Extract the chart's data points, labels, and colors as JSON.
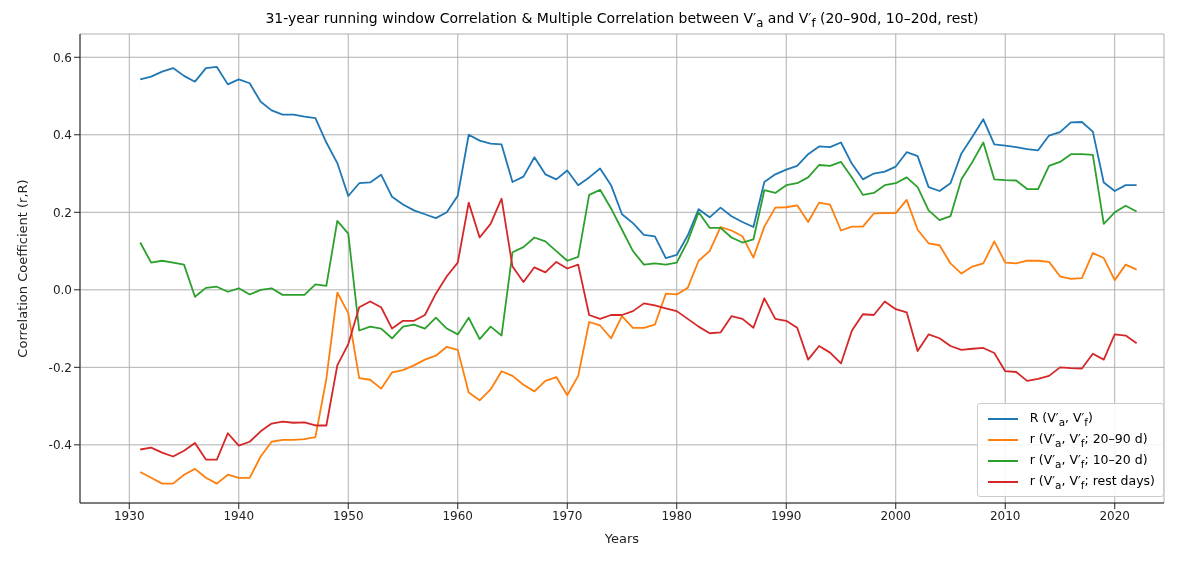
{
  "chart_data": {
    "type": "line",
    "title": "31-year running window Correlation & Multiple Correlation between V′$_{a}$ and V′$_{f}$ (20–90d, 10–20d, rest)",
    "xlabel": "Years",
    "ylabel": "Correlation Coefficient (r,R)",
    "x": [
      1931,
      1932,
      1933,
      1934,
      1935,
      1936,
      1937,
      1938,
      1939,
      1940,
      1941,
      1942,
      1943,
      1944,
      1945,
      1946,
      1947,
      1948,
      1949,
      1950,
      1951,
      1952,
      1953,
      1954,
      1955,
      1956,
      1957,
      1958,
      1959,
      1960,
      1961,
      1962,
      1963,
      1964,
      1965,
      1966,
      1967,
      1968,
      1969,
      1970,
      1971,
      1972,
      1973,
      1974,
      1975,
      1976,
      1977,
      1978,
      1979,
      1980,
      1981,
      1982,
      1983,
      1984,
      1985,
      1986,
      1987,
      1988,
      1989,
      1990,
      1991,
      1992,
      1993,
      1994,
      1995,
      1996,
      1997,
      1998,
      1999,
      2000,
      2001,
      2002,
      2003,
      2004,
      2005,
      2006,
      2007,
      2008,
      2009,
      2010,
      2011,
      2012,
      2013,
      2014,
      2015,
      2016,
      2017,
      2018,
      2019,
      2020,
      2021,
      2022
    ],
    "series": [
      {
        "name": "R (V′$_{a}$, V′$_{f}$)",
        "color": "#1f77b4",
        "values": [
          0.543,
          0.55,
          0.563,
          0.572,
          0.552,
          0.537,
          0.572,
          0.575,
          0.53,
          0.543,
          0.533,
          0.485,
          0.463,
          0.452,
          0.452,
          0.447,
          0.443,
          0.38,
          0.327,
          0.242,
          0.275,
          0.277,
          0.297,
          0.24,
          0.22,
          0.205,
          0.195,
          0.185,
          0.2,
          0.243,
          0.4,
          0.385,
          0.377,
          0.375,
          0.278,
          0.292,
          0.342,
          0.298,
          0.285,
          0.308,
          0.27,
          0.29,
          0.313,
          0.27,
          0.195,
          0.172,
          0.142,
          0.138,
          0.082,
          0.09,
          0.14,
          0.208,
          0.187,
          0.212,
          0.19,
          0.175,
          0.162,
          0.278,
          0.298,
          0.31,
          0.32,
          0.35,
          0.37,
          0.368,
          0.38,
          0.325,
          0.285,
          0.3,
          0.305,
          0.318,
          0.355,
          0.345,
          0.265,
          0.255,
          0.275,
          0.352,
          0.395,
          0.44,
          0.375,
          0.372,
          0.368,
          0.363,
          0.36,
          0.398,
          0.407,
          0.432,
          0.433,
          0.408,
          0.277,
          0.255,
          0.27,
          0.27
        ]
      },
      {
        "name": "r (V′$_{a}$, V′$_{f}$; 20–90 d)",
        "color": "#ff7f0e",
        "values": [
          -0.47,
          -0.485,
          -0.5,
          -0.5,
          -0.477,
          -0.462,
          -0.485,
          -0.5,
          -0.477,
          -0.485,
          -0.485,
          -0.43,
          -0.392,
          -0.387,
          -0.387,
          -0.385,
          -0.38,
          -0.23,
          -0.007,
          -0.06,
          -0.228,
          -0.232,
          -0.255,
          -0.213,
          -0.207,
          -0.195,
          -0.18,
          -0.17,
          -0.147,
          -0.155,
          -0.265,
          -0.285,
          -0.257,
          -0.21,
          -0.222,
          -0.245,
          -0.262,
          -0.235,
          -0.225,
          -0.272,
          -0.222,
          -0.083,
          -0.092,
          -0.125,
          -0.068,
          -0.098,
          -0.098,
          -0.09,
          -0.01,
          -0.012,
          0.005,
          0.075,
          0.1,
          0.162,
          0.153,
          0.138,
          0.083,
          0.163,
          0.212,
          0.213,
          0.218,
          0.175,
          0.225,
          0.22,
          0.153,
          0.163,
          0.163,
          0.197,
          0.198,
          0.198,
          0.232,
          0.155,
          0.12,
          0.115,
          0.068,
          0.042,
          0.06,
          0.068,
          0.125,
          0.07,
          0.068,
          0.075,
          0.075,
          0.072,
          0.035,
          0.028,
          0.03,
          0.095,
          0.082,
          0.025,
          0.065,
          0.052
        ]
      },
      {
        "name": "r (V′$_{a}$, V′$_{f}$; 10–20 d)",
        "color": "#2ca02c",
        "values": [
          0.122,
          0.07,
          0.075,
          0.07,
          0.065,
          -0.018,
          0.005,
          0.008,
          -0.005,
          0.004,
          -0.012,
          0.0,
          0.004,
          -0.013,
          -0.013,
          -0.013,
          0.014,
          0.01,
          0.178,
          0.145,
          -0.105,
          -0.095,
          -0.1,
          -0.125,
          -0.095,
          -0.09,
          -0.1,
          -0.072,
          -0.1,
          -0.115,
          -0.072,
          -0.127,
          -0.095,
          -0.118,
          0.097,
          0.11,
          0.135,
          0.125,
          0.1,
          0.075,
          0.085,
          0.245,
          0.258,
          0.21,
          0.155,
          0.1,
          0.065,
          0.068,
          0.065,
          0.07,
          0.125,
          0.2,
          0.16,
          0.16,
          0.135,
          0.122,
          0.13,
          0.257,
          0.25,
          0.27,
          0.275,
          0.29,
          0.322,
          0.32,
          0.33,
          0.29,
          0.245,
          0.25,
          0.27,
          0.275,
          0.29,
          0.265,
          0.205,
          0.18,
          0.19,
          0.285,
          0.33,
          0.38,
          0.285,
          0.283,
          0.282,
          0.26,
          0.26,
          0.32,
          0.33,
          0.35,
          0.35,
          0.348,
          0.17,
          0.2,
          0.217,
          0.202
        ]
      },
      {
        "name": "r (V′$_{a}$, V′$_{f}$; rest days)",
        "color": "#d62728",
        "values": [
          -0.412,
          -0.407,
          -0.42,
          -0.43,
          -0.415,
          -0.395,
          -0.438,
          -0.438,
          -0.37,
          -0.402,
          -0.392,
          -0.365,
          -0.345,
          -0.34,
          -0.343,
          -0.342,
          -0.35,
          -0.35,
          -0.195,
          -0.14,
          -0.045,
          -0.03,
          -0.045,
          -0.1,
          -0.08,
          -0.08,
          -0.065,
          -0.01,
          0.035,
          0.07,
          0.225,
          0.135,
          0.17,
          0.235,
          0.06,
          0.02,
          0.058,
          0.045,
          0.072,
          0.055,
          0.065,
          -0.065,
          -0.075,
          -0.065,
          -0.065,
          -0.055,
          -0.035,
          -0.04,
          -0.048,
          -0.055,
          -0.075,
          -0.095,
          -0.112,
          -0.11,
          -0.068,
          -0.075,
          -0.098,
          -0.022,
          -0.075,
          -0.08,
          -0.098,
          -0.18,
          -0.145,
          -0.162,
          -0.19,
          -0.105,
          -0.063,
          -0.065,
          -0.03,
          -0.05,
          -0.058,
          -0.158,
          -0.115,
          -0.125,
          -0.145,
          -0.155,
          -0.152,
          -0.15,
          -0.163,
          -0.21,
          -0.212,
          -0.235,
          -0.23,
          -0.222,
          -0.2,
          -0.202,
          -0.203,
          -0.165,
          -0.18,
          -0.115,
          -0.118,
          -0.138
        ]
      }
    ],
    "xlim": [
      1925.5,
      2024.5
    ],
    "xticks": [
      1930,
      1940,
      1950,
      1960,
      1970,
      1980,
      1990,
      2000,
      2010,
      2020
    ],
    "ylim": [
      -0.55,
      0.66
    ],
    "yticks": [
      {
        "value": -0.4,
        "label": "-0.4"
      },
      {
        "value": -0.2,
        "label": "-0.2"
      },
      {
        "value": 0,
        "label": "0.0"
      },
      {
        "value": 0.2,
        "label": "0.2"
      },
      {
        "value": 0.4,
        "label": "0.4"
      },
      {
        "value": 0.6,
        "label": "0.6"
      }
    ],
    "grid": true,
    "legend": "bottom right",
    "marker": "none",
    "line_style": "solid"
  }
}
